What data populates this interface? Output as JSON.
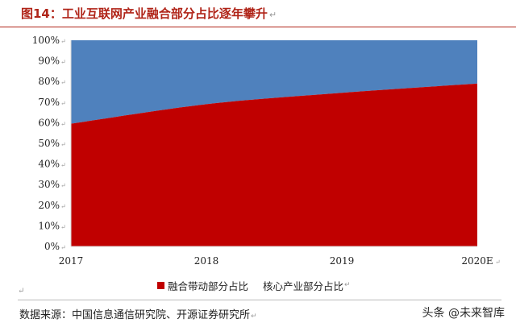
{
  "header": {
    "title": "图14：工业互联网产业融合部分占比逐年攀升",
    "return_mark": "↵"
  },
  "chart_data": {
    "type": "area",
    "stacked": true,
    "percent": true,
    "x": [
      "2017",
      "2018",
      "2019",
      "2020E"
    ],
    "series": [
      {
        "name": "融合带动部分占比",
        "values": [
          59.5,
          69,
          74.5,
          79
        ],
        "color": "#c00000"
      },
      {
        "name": "核心产业部分占比",
        "values": [
          40.5,
          31,
          25.5,
          21
        ],
        "color": "#4f81bd"
      }
    ],
    "ylim": [
      0,
      100
    ],
    "yticks": [
      "0%",
      "10%",
      "20%",
      "30%",
      "40%",
      "50%",
      "60%",
      "70%",
      "80%",
      "90%",
      "100%"
    ],
    "grid": false,
    "legend_position": "bottom",
    "tick_mark": "↵"
  },
  "footer": {
    "source": "数据来源：中国信息通信研究院、开源证券研究所",
    "return_mark": "↵",
    "stray_mark": "↵",
    "watermark": "头条 @未来智库"
  }
}
